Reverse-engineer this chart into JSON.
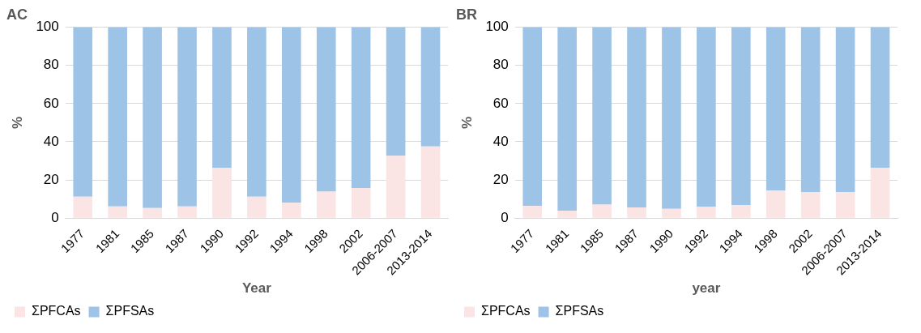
{
  "chart_data": [
    {
      "type": "bar",
      "title": "AC",
      "xlabel": "Year",
      "ylabel": "%",
      "stacked": true,
      "categories": [
        "1977",
        "1981",
        "1985",
        "1987",
        "1990",
        "1992",
        "1994",
        "1998",
        "2002",
        "2006-2007",
        "2013-2014"
      ],
      "series": [
        {
          "name": "ΣPFCAs",
          "color": "#fbe4e4",
          "values": [
            11.2,
            6.1,
            5.3,
            6.1,
            26.4,
            11.2,
            8,
            13.9,
            15.8,
            32.6,
            37.5
          ]
        },
        {
          "name": "ΣPFSAs",
          "color": "#9dc3e6",
          "values": [
            88.8,
            93.9,
            94.7,
            93.9,
            73.6,
            88.8,
            92,
            86.1,
            84.2,
            67.4,
            62.5
          ]
        }
      ],
      "ylim": [
        0,
        100
      ],
      "yticks": [
        0,
        20,
        40,
        60,
        80,
        100
      ],
      "grid": "y",
      "legend": "bottom left"
    },
    {
      "type": "bar",
      "title": "BR",
      "xlabel": "year",
      "ylabel": "%",
      "stacked": true,
      "categories": [
        "1977",
        "1981",
        "1985",
        "1987",
        "1990",
        "1992",
        "1994",
        "1998",
        "2002",
        "2006-2007",
        "2013-2014"
      ],
      "series": [
        {
          "name": "ΣPFCAs",
          "color": "#fbe4e4",
          "values": [
            6.3,
            3.9,
            7.1,
            5.6,
            4.8,
            5.9,
            6.7,
            14.4,
            13.7,
            13.5,
            26.4
          ]
        },
        {
          "name": "ΣPFSAs",
          "color": "#9dc3e6",
          "values": [
            93.7,
            96.1,
            92.9,
            94.4,
            95.2,
            94.1,
            93.3,
            85.6,
            86.3,
            86.5,
            73.6
          ]
        }
      ],
      "ylim": [
        0,
        100
      ],
      "yticks": [
        0,
        20,
        40,
        60,
        80,
        100
      ],
      "grid": "y",
      "legend": "bottom left"
    }
  ]
}
